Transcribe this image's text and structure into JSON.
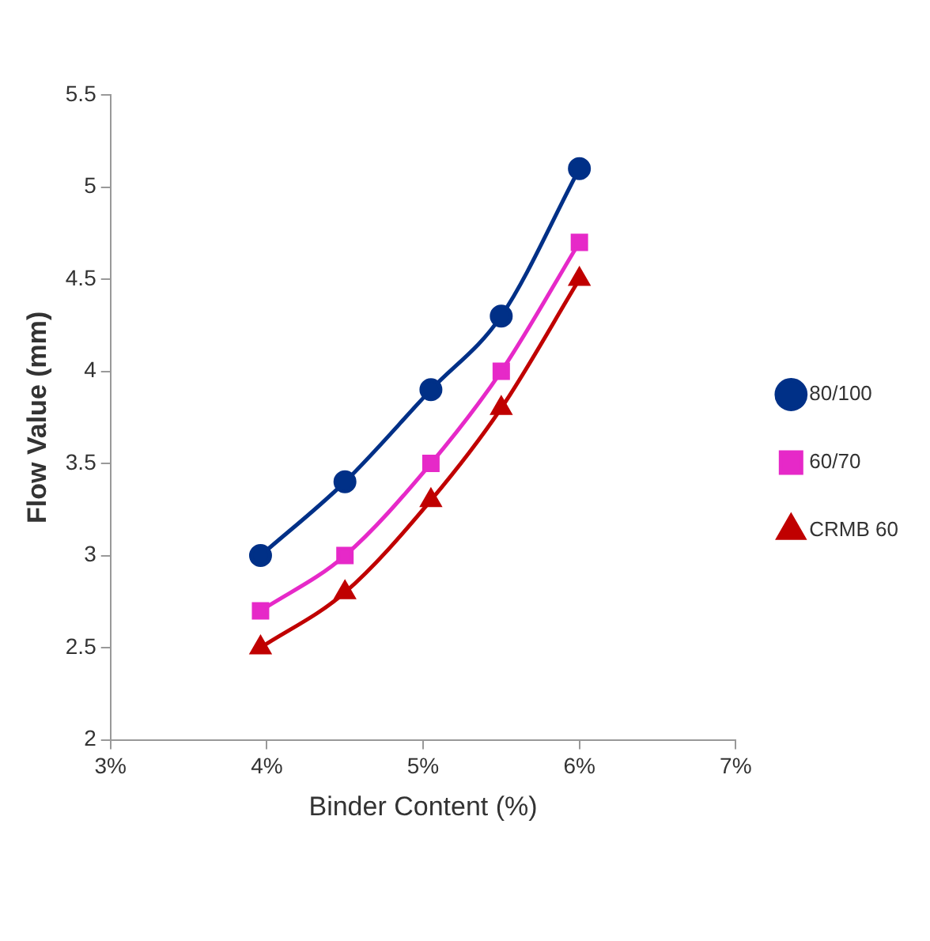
{
  "chart_data": {
    "type": "line",
    "xlabel": "Binder Content (%)",
    "ylabel": "Flow Value (mm)",
    "x": [
      3.96,
      4.5,
      5.05,
      5.5,
      6.0
    ],
    "series": [
      {
        "name": "80/100",
        "color": "#003087",
        "marker": "circle",
        "values": [
          3.0,
          3.4,
          3.9,
          4.3,
          5.1
        ]
      },
      {
        "name": "60/70",
        "color": "#e629c8",
        "marker": "square",
        "values": [
          2.7,
          3.0,
          3.5,
          4.0,
          4.7
        ]
      },
      {
        "name": "CRMB 60",
        "color": "#c00000",
        "marker": "triangle",
        "values": [
          2.5,
          2.8,
          3.3,
          3.8,
          4.5
        ]
      }
    ],
    "xlim": [
      3,
      7
    ],
    "xticks": [
      {
        "value": 3,
        "label": "3%"
      },
      {
        "value": 4,
        "label": "4%"
      },
      {
        "value": 5,
        "label": "5%"
      },
      {
        "value": 6,
        "label": "6%"
      },
      {
        "value": 7,
        "label": "7%"
      }
    ],
    "ylim": [
      2,
      5.5
    ],
    "yticks": [
      2,
      2.5,
      3,
      3.5,
      4,
      4.5,
      5,
      5.5
    ],
    "grid": false,
    "legend": "right"
  }
}
